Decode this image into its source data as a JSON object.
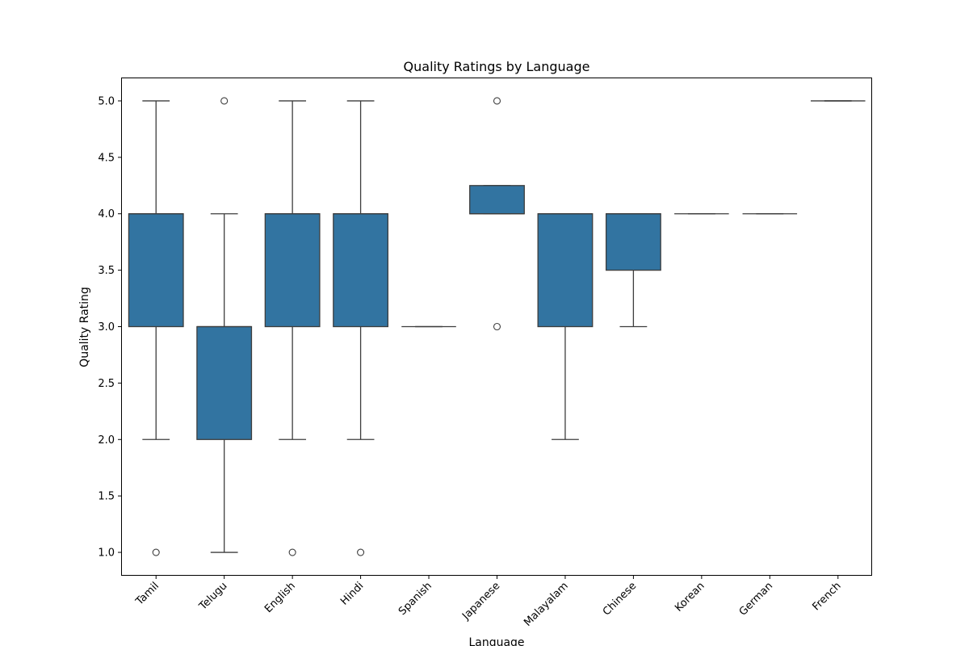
{
  "chart_data": {
    "type": "box",
    "title": "Quality Ratings by Language",
    "xlabel": "Language",
    "ylabel": "Quality Rating",
    "ylim": [
      0.8,
      5.2
    ],
    "yticks": [
      "1.0",
      "1.5",
      "2.0",
      "2.5",
      "3.0",
      "3.5",
      "4.0",
      "4.5",
      "5.0"
    ],
    "grid": false,
    "legend": "none",
    "box_color": "#3274a1",
    "line_color": "#3d3d3d",
    "categories": [
      "Tamil",
      "Telugu",
      "English",
      "Hindi",
      "Spanish",
      "Japanese",
      "Malayalam",
      "Chinese",
      "Korean",
      "German",
      "French"
    ],
    "boxes": [
      {
        "category": "Tamil",
        "whisker_low": 2.0,
        "q1": 3.0,
        "median": 4.0,
        "q3": 4.0,
        "whisker_high": 5.0,
        "outliers": [
          1.0
        ]
      },
      {
        "category": "Telugu",
        "whisker_low": 1.0,
        "q1": 2.0,
        "median": 3.0,
        "q3": 3.0,
        "whisker_high": 4.0,
        "outliers": [
          5.0
        ]
      },
      {
        "category": "English",
        "whisker_low": 2.0,
        "q1": 3.0,
        "median": 4.0,
        "q3": 4.0,
        "whisker_high": 5.0,
        "outliers": [
          1.0
        ]
      },
      {
        "category": "Hindi",
        "whisker_low": 2.0,
        "q1": 3.0,
        "median": 4.0,
        "q3": 4.0,
        "whisker_high": 5.0,
        "outliers": [
          1.0
        ]
      },
      {
        "category": "Spanish",
        "whisker_low": 3.0,
        "q1": 3.0,
        "median": 3.0,
        "q3": 3.0,
        "whisker_high": 3.0,
        "outliers": []
      },
      {
        "category": "Japanese",
        "whisker_low": 4.0,
        "q1": 4.0,
        "median": 4.0,
        "q3": 4.25,
        "whisker_high": 4.25,
        "outliers": [
          3.0,
          5.0
        ]
      },
      {
        "category": "Malayalam",
        "whisker_low": 2.0,
        "q1": 3.0,
        "median": 4.0,
        "q3": 4.0,
        "whisker_high": 4.0,
        "outliers": []
      },
      {
        "category": "Chinese",
        "whisker_low": 3.0,
        "q1": 3.5,
        "median": 4.0,
        "q3": 4.0,
        "whisker_high": 4.0,
        "outliers": []
      },
      {
        "category": "Korean",
        "whisker_low": 4.0,
        "q1": 4.0,
        "median": 4.0,
        "q3": 4.0,
        "whisker_high": 4.0,
        "outliers": []
      },
      {
        "category": "German",
        "whisker_low": 4.0,
        "q1": 4.0,
        "median": 4.0,
        "q3": 4.0,
        "whisker_high": 4.0,
        "outliers": []
      },
      {
        "category": "French",
        "whisker_low": 5.0,
        "q1": 5.0,
        "median": 5.0,
        "q3": 5.0,
        "whisker_high": 5.0,
        "outliers": []
      }
    ]
  }
}
